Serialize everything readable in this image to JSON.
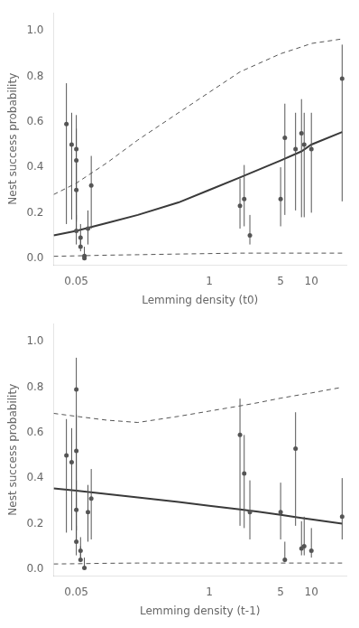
{
  "chart_data": [
    {
      "type": "scatter",
      "xlabel": "Lemming density (t0)",
      "ylabel": "Nest success probability",
      "log": "x",
      "grid": false,
      "xlim": [
        0.03,
        22
      ],
      "ylim": [
        -0.03,
        1.08
      ],
      "xticks": [
        0.05,
        1,
        5,
        10
      ],
      "yticks": [
        {
          "value": 0.0,
          "label": "0.0"
        },
        0.2,
        0.4,
        0.6,
        0.8,
        {
          "value": 1.0,
          "label": "1.0"
        }
      ],
      "series": [
        {
          "type": "line",
          "line_style": "dashed",
          "color": "#555555",
          "x": [
            0.03,
            0.05,
            0.1,
            0.2,
            0.5,
            1,
            2,
            5,
            8,
            10,
            20
          ],
          "values": [
            0.28,
            0.33,
            0.42,
            0.52,
            0.64,
            0.73,
            0.82,
            0.9,
            0.93,
            0.945,
            0.965
          ]
        },
        {
          "type": "line",
          "line_style": "dashed",
          "color": "#555555",
          "x": [
            0.03,
            0.05,
            0.1,
            0.2,
            0.5,
            1,
            2,
            5,
            8,
            10,
            20
          ],
          "values": [
            0.008,
            0.01,
            0.013,
            0.015,
            0.018,
            0.02,
            0.022,
            0.022,
            0.022,
            0.022,
            0.022
          ]
        },
        {
          "type": "line",
          "line_style": "solid",
          "color": "#3a3a3a",
          "x": [
            0.03,
            0.05,
            0.1,
            0.2,
            0.5,
            1,
            2,
            5,
            8,
            10,
            20
          ],
          "values": [
            0.1,
            0.12,
            0.155,
            0.19,
            0.245,
            0.3,
            0.355,
            0.43,
            0.47,
            0.5,
            0.555
          ]
        },
        {
          "type": "scatter",
          "marker": "circle",
          "color": "#555555",
          "x": [
            0.04,
            0.045,
            0.05,
            0.05,
            0.05,
            0.05,
            0.055,
            0.055,
            0.06,
            0.06,
            0.065,
            0.07,
            2.0,
            2.2,
            2.5,
            5.0,
            5.5,
            7.0,
            8.0,
            8.5,
            10.0,
            20.0
          ],
          "values": [
            0.59,
            0.5,
            0.48,
            0.43,
            0.3,
            0.12,
            0.09,
            0.05,
            0.01,
            0.0,
            0.13,
            0.32,
            0.23,
            0.26,
            0.1,
            0.26,
            0.53,
            0.48,
            0.55,
            0.5,
            0.48,
            0.79
          ],
          "error_minus": [
            0.44,
            0.33,
            0.32,
            0.26,
            0.17,
            0.06,
            0.04,
            0.02,
            0.005,
            0.0,
            0.07,
            0.19,
            0.1,
            0.12,
            0.04,
            0.12,
            0.34,
            0.27,
            0.37,
            0.32,
            0.28,
            0.54
          ],
          "error_plus": [
            0.18,
            0.14,
            0.15,
            0.14,
            0.14,
            0.07,
            0.06,
            0.05,
            0.04,
            0.015,
            0.08,
            0.13,
            0.12,
            0.15,
            0.09,
            0.14,
            0.15,
            0.16,
            0.15,
            0.14,
            0.16,
            0.15
          ]
        }
      ]
    },
    {
      "type": "scatter",
      "xlabel": "Lemming density (t-1)",
      "ylabel": "Nest success probability",
      "log": "x",
      "grid": false,
      "xlim": [
        0.03,
        22
      ],
      "ylim": [
        -0.03,
        1.08
      ],
      "xticks": [
        0.05,
        1,
        5,
        10
      ],
      "yticks": [
        {
          "value": 0.0,
          "label": "0.0"
        },
        0.2,
        0.4,
        0.6,
        0.8,
        {
          "value": 1.0,
          "label": "1.0"
        }
      ],
      "series": [
        {
          "type": "line",
          "line_style": "dashed",
          "color": "#555555",
          "x": [
            0.03,
            0.05,
            0.1,
            0.2,
            0.5,
            1,
            2,
            3,
            5,
            8,
            10,
            20
          ],
          "values": [
            0.685,
            0.672,
            0.655,
            0.645,
            0.672,
            0.695,
            0.718,
            0.732,
            0.752,
            0.768,
            0.775,
            0.8
          ]
        },
        {
          "type": "line",
          "line_style": "dashed",
          "color": "#555555",
          "x": [
            0.03,
            0.05,
            0.1,
            0.2,
            0.5,
            1,
            2,
            3,
            5,
            8,
            10,
            20
          ],
          "values": [
            0.022,
            0.023,
            0.025,
            0.026,
            0.026,
            0.026,
            0.026,
            0.026,
            0.026,
            0.026,
            0.026,
            0.026
          ]
        },
        {
          "type": "line",
          "line_style": "solid",
          "color": "#3a3a3a",
          "x": [
            0.03,
            0.05,
            0.1,
            0.2,
            0.5,
            1,
            2,
            3,
            5,
            8,
            10,
            20
          ],
          "values": [
            0.355,
            0.345,
            0.33,
            0.315,
            0.295,
            0.278,
            0.262,
            0.252,
            0.238,
            0.224,
            0.218,
            0.2
          ]
        },
        {
          "type": "scatter",
          "marker": "circle",
          "color": "#555555",
          "x": [
            0.04,
            0.045,
            0.05,
            0.05,
            0.05,
            0.05,
            0.055,
            0.055,
            0.06,
            0.065,
            0.07,
            2.0,
            2.2,
            2.5,
            5.0,
            5.5,
            7.0,
            8.0,
            8.5,
            10.0,
            20.0
          ],
          "values": [
            0.5,
            0.47,
            0.79,
            0.52,
            0.26,
            0.12,
            0.08,
            0.04,
            0.005,
            0.25,
            0.31,
            0.59,
            0.42,
            0.25,
            0.25,
            0.04,
            0.53,
            0.09,
            0.1,
            0.08,
            0.23
          ],
          "error_minus": [
            0.34,
            0.3,
            0.62,
            0.35,
            0.14,
            0.06,
            0.03,
            0.01,
            0.001,
            0.13,
            0.18,
            0.4,
            0.24,
            0.12,
            0.12,
            0.01,
            0.34,
            0.03,
            0.04,
            0.03,
            0.1
          ],
          "error_plus": [
            0.16,
            0.15,
            0.14,
            0.16,
            0.13,
            0.07,
            0.06,
            0.06,
            0.045,
            0.12,
            0.13,
            0.16,
            0.17,
            0.14,
            0.13,
            0.08,
            0.16,
            0.12,
            0.13,
            0.1,
            0.17
          ]
        }
      ]
    }
  ]
}
